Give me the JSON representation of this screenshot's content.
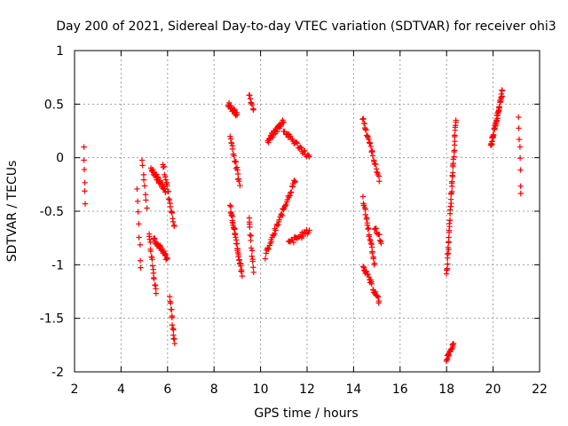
{
  "chart_data": {
    "type": "scatter",
    "title": "Day 200 of 2021, Sidereal Day-to-day VTEC variation (SDTVAR) for receiver ohi3",
    "xlabel": "GPS time / hours",
    "ylabel": "SDTVAR / TECUs",
    "xlim": [
      2,
      22
    ],
    "ylim": [
      -2,
      1
    ],
    "xticks": [
      2,
      4,
      6,
      8,
      10,
      12,
      14,
      16,
      18,
      20,
      22
    ],
    "yticks": [
      1,
      0.5,
      0,
      -0.5,
      -1,
      -1.5,
      -2
    ],
    "x_tick_labels": [
      "2",
      "4",
      "6",
      "8",
      "10",
      "12",
      "14",
      "16",
      "18",
      "20",
      "22"
    ],
    "y_tick_labels": [
      "1",
      "0.5",
      "0",
      "-0.5",
      "-1",
      "-1.5",
      "-2"
    ],
    "grid": true,
    "marker": "plus",
    "color": "#ff0000",
    "tracks": [
      {
        "t0": 2.4,
        "t1": 2.45,
        "y0": 0.1,
        "y1": -0.42,
        "n": 6
      },
      {
        "t0": 4.7,
        "t1": 4.85,
        "y0": -0.3,
        "y1": -1.05,
        "n": 8
      },
      {
        "t0": 4.9,
        "t1": 5.1,
        "y0": -0.02,
        "y1": -0.45,
        "n": 8
      },
      {
        "t0": 5.2,
        "t1": 5.5,
        "y0": -0.7,
        "y1": -1.28,
        "n": 18
      },
      {
        "t0": 5.3,
        "t1": 5.9,
        "y0": -0.1,
        "y1": -0.3,
        "n": 30
      },
      {
        "t0": 5.4,
        "t1": 6.0,
        "y0": -0.75,
        "y1": -0.95,
        "n": 30
      },
      {
        "t0": 5.8,
        "t1": 6.3,
        "y0": -0.05,
        "y1": -0.65,
        "n": 22
      },
      {
        "t0": 6.1,
        "t1": 6.3,
        "y0": -1.3,
        "y1": -1.75,
        "n": 14
      },
      {
        "t0": 8.6,
        "t1": 9.0,
        "y0": 0.5,
        "y1": 0.4,
        "n": 20
      },
      {
        "t0": 8.7,
        "t1": 9.1,
        "y0": 0.2,
        "y1": -0.25,
        "n": 20
      },
      {
        "t0": 8.7,
        "t1": 9.2,
        "y0": -0.45,
        "y1": -1.1,
        "n": 40
      },
      {
        "t0": 9.5,
        "t1": 9.7,
        "y0": 0.6,
        "y1": 0.45,
        "n": 8
      },
      {
        "t0": 9.5,
        "t1": 9.7,
        "y0": -0.55,
        "y1": -1.05,
        "n": 14
      },
      {
        "t0": 10.2,
        "t1": 11.5,
        "y0": -0.92,
        "y1": -0.2,
        "n": 44
      },
      {
        "t0": 10.3,
        "t1": 11.0,
        "y0": 0.15,
        "y1": 0.35,
        "n": 30
      },
      {
        "t0": 11.0,
        "t1": 12.1,
        "y0": 0.25,
        "y1": 0.0,
        "n": 28
      },
      {
        "t0": 11.2,
        "t1": 12.1,
        "y0": -0.8,
        "y1": -0.68,
        "n": 22
      },
      {
        "t0": 14.4,
        "t1": 15.1,
        "y0": 0.37,
        "y1": -0.2,
        "n": 30
      },
      {
        "t0": 14.4,
        "t1": 14.9,
        "y0": -0.38,
        "y1": -1.0,
        "n": 26
      },
      {
        "t0": 14.4,
        "t1": 15.1,
        "y0": -1.0,
        "y1": -1.35,
        "n": 26
      },
      {
        "t0": 14.9,
        "t1": 15.2,
        "y0": -0.65,
        "y1": -0.78,
        "n": 10
      },
      {
        "t0": 18.0,
        "t1": 18.4,
        "y0": -1.1,
        "y1": 0.35,
        "n": 50
      },
      {
        "t0": 18.0,
        "t1": 18.3,
        "y0": -1.88,
        "y1": -1.75,
        "n": 18
      },
      {
        "t0": 19.9,
        "t1": 20.4,
        "y0": 0.1,
        "y1": 0.62,
        "n": 44
      },
      {
        "t0": 21.1,
        "t1": 21.2,
        "y0": 0.4,
        "y1": -0.35,
        "n": 8
      }
    ]
  }
}
